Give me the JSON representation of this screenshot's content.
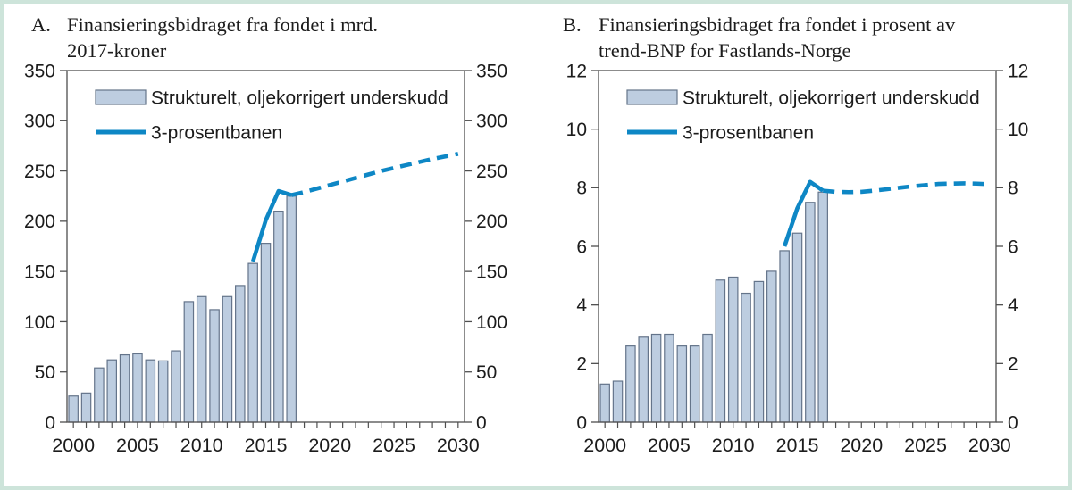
{
  "figure": {
    "border_color": "#cde4da",
    "background": "#ffffff",
    "panels": [
      {
        "id": "A",
        "title_letter": "A.",
        "title_lines": [
          "Finansieringsbidraget fra fondet i mrd.",
          "2017-kroner"
        ]
      },
      {
        "id": "B",
        "title_letter": "B.",
        "title_lines": [
          "Finansieringsbidraget fra fondet i prosent av",
          "trend-BNP for Fastlands-Norge"
        ]
      }
    ]
  },
  "legend": {
    "bar_label": "Strukturelt, oljekorrigert underskudd",
    "line_label": "3-prosentbanen"
  },
  "colors": {
    "bar_fill": "#bdcde0",
    "bar_stroke": "#64748a",
    "line": "#0e87c5",
    "axis": "#4f4f4f",
    "text": "#1c1c1c"
  },
  "chart_data": [
    {
      "type": "bar",
      "title": "A. Finansieringsbidraget fra fondet i mrd. 2017-kroner",
      "xlabel": "",
      "ylabel": "",
      "xlim": [
        1999.5,
        2030.5
      ],
      "ylim": [
        0,
        350
      ],
      "yticks": [
        0,
        50,
        100,
        150,
        200,
        250,
        300,
        350
      ],
      "xtick_labels": [
        2000,
        2005,
        2010,
        2015,
        2020,
        2025,
        2030
      ],
      "x_minor_step": 1,
      "legend_position": "top-left-inside",
      "grid": false,
      "categories": [
        2000,
        2001,
        2002,
        2003,
        2004,
        2005,
        2006,
        2007,
        2008,
        2009,
        2010,
        2011,
        2012,
        2013,
        2014,
        2015,
        2016,
        2017
      ],
      "series": [
        {
          "name": "Strukturelt, oljekorrigert underskudd",
          "type": "bar",
          "values": [
            26,
            29,
            54,
            62,
            67,
            68,
            62,
            61,
            71,
            120,
            125,
            112,
            125,
            136,
            158,
            178,
            210,
            225
          ]
        },
        {
          "name": "3-prosentbanen",
          "type": "line",
          "solid": [
            [
              2014,
              160
            ],
            [
              2015,
              201
            ],
            [
              2016,
              230
            ],
            [
              2017,
              226
            ]
          ],
          "dashed": [
            [
              2017,
              226
            ],
            [
              2018,
              229
            ],
            [
              2019,
              232.5
            ],
            [
              2020,
              236
            ],
            [
              2021,
              239.5
            ],
            [
              2022,
              243
            ],
            [
              2023,
              246.5
            ],
            [
              2024,
              250
            ],
            [
              2025,
              253
            ],
            [
              2026,
              256
            ],
            [
              2027,
              259
            ],
            [
              2028,
              262
            ],
            [
              2029,
              264.5
            ],
            [
              2030,
              267
            ]
          ]
        }
      ]
    },
    {
      "type": "bar",
      "title": "B. Finansieringsbidraget fra fondet i prosent av trend-BNP for Fastlands-Norge",
      "xlabel": "",
      "ylabel": "",
      "xlim": [
        1999.5,
        2030.5
      ],
      "ylim": [
        0,
        12
      ],
      "yticks": [
        0,
        2,
        4,
        6,
        8,
        10,
        12
      ],
      "xtick_labels": [
        2000,
        2005,
        2010,
        2015,
        2020,
        2025,
        2030
      ],
      "x_minor_step": 1,
      "legend_position": "top-left-inside",
      "grid": false,
      "categories": [
        2000,
        2001,
        2002,
        2003,
        2004,
        2005,
        2006,
        2007,
        2008,
        2009,
        2010,
        2011,
        2012,
        2013,
        2014,
        2015,
        2016,
        2017
      ],
      "series": [
        {
          "name": "Strukturelt, oljekorrigert underskudd",
          "type": "bar",
          "values": [
            1.3,
            1.4,
            2.6,
            2.9,
            3.0,
            3.0,
            2.6,
            2.6,
            3.0,
            4.85,
            4.95,
            4.4,
            4.8,
            5.15,
            5.85,
            6.45,
            7.5,
            7.85
          ]
        },
        {
          "name": "3-prosentbanen",
          "type": "line",
          "solid": [
            [
              2014,
              6.0
            ],
            [
              2015,
              7.3
            ],
            [
              2016,
              8.2
            ],
            [
              2017,
              7.9
            ]
          ],
          "dashed": [
            [
              2017,
              7.9
            ],
            [
              2018,
              7.86
            ],
            [
              2019,
              7.85
            ],
            [
              2020,
              7.86
            ],
            [
              2021,
              7.9
            ],
            [
              2022,
              7.95
            ],
            [
              2023,
              8.0
            ],
            [
              2024,
              8.05
            ],
            [
              2025,
              8.09
            ],
            [
              2026,
              8.13
            ],
            [
              2027,
              8.14
            ],
            [
              2028,
              8.15
            ],
            [
              2029,
              8.14
            ],
            [
              2030,
              8.12
            ]
          ]
        }
      ]
    }
  ]
}
